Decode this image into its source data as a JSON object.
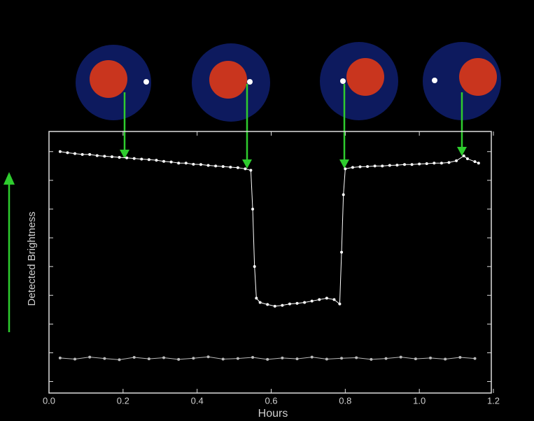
{
  "chart_data": {
    "type": "line",
    "xlabel": "Hours",
    "ylabel": "Detected Brightness",
    "xlim": [
      0,
      1.2
    ],
    "xticks": [
      {
        "value": 0,
        "label": "0.0"
      },
      0.2,
      0.4,
      0.6,
      0.8,
      {
        "value": 1,
        "label": "1.0"
      },
      1.2
    ],
    "ylim": [
      -0.4,
      8.7
    ],
    "yticks": [
      0,
      1,
      2,
      3,
      4,
      5,
      6,
      7,
      8
    ],
    "series": [
      {
        "color": "#ffffff",
        "x": [
          0.03,
          0.05,
          0.07,
          0.09,
          0.11,
          0.13,
          0.15,
          0.17,
          0.19,
          0.21,
          0.23,
          0.25,
          0.27,
          0.29,
          0.31,
          0.33,
          0.35,
          0.37,
          0.39,
          0.41,
          0.43,
          0.45,
          0.47,
          0.49,
          0.51,
          0.53,
          0.545,
          0.55,
          0.555,
          0.56,
          0.57,
          0.59,
          0.61,
          0.63,
          0.65,
          0.67,
          0.69,
          0.71,
          0.73,
          0.75,
          0.77,
          0.785,
          0.79,
          0.795,
          0.8,
          0.82,
          0.84,
          0.86,
          0.88,
          0.9,
          0.92,
          0.94,
          0.96,
          0.98,
          1.0,
          1.02,
          1.04,
          1.06,
          1.08,
          1.1,
          1.12,
          1.13,
          1.15,
          1.16
        ],
        "values": [
          8.0,
          7.96,
          7.93,
          7.9,
          7.9,
          7.86,
          7.84,
          7.82,
          7.8,
          7.78,
          7.76,
          7.74,
          7.72,
          7.7,
          7.66,
          7.64,
          7.6,
          7.6,
          7.56,
          7.55,
          7.52,
          7.5,
          7.48,
          7.46,
          7.44,
          7.4,
          7.35,
          6.0,
          4.0,
          2.9,
          2.75,
          2.68,
          2.62,
          2.65,
          2.7,
          2.72,
          2.75,
          2.8,
          2.85,
          2.9,
          2.85,
          2.7,
          4.5,
          6.5,
          7.4,
          7.45,
          7.47,
          7.48,
          7.5,
          7.5,
          7.52,
          7.53,
          7.55,
          7.55,
          7.57,
          7.58,
          7.6,
          7.6,
          7.62,
          7.68,
          7.85,
          7.75,
          7.65,
          7.6
        ]
      },
      {
        "color": "#bbbbbb",
        "x": [
          0.03,
          0.07,
          0.11,
          0.15,
          0.19,
          0.23,
          0.27,
          0.31,
          0.35,
          0.39,
          0.43,
          0.47,
          0.51,
          0.55,
          0.59,
          0.63,
          0.67,
          0.71,
          0.75,
          0.79,
          0.83,
          0.87,
          0.91,
          0.95,
          0.99,
          1.03,
          1.07,
          1.11,
          1.15
        ],
        "values": [
          0.82,
          0.78,
          0.85,
          0.8,
          0.76,
          0.84,
          0.79,
          0.83,
          0.77,
          0.81,
          0.86,
          0.78,
          0.8,
          0.84,
          0.77,
          0.82,
          0.79,
          0.85,
          0.78,
          0.81,
          0.83,
          0.77,
          0.8,
          0.85,
          0.79,
          0.82,
          0.78,
          0.84,
          0.8
        ]
      }
    ]
  }
}
